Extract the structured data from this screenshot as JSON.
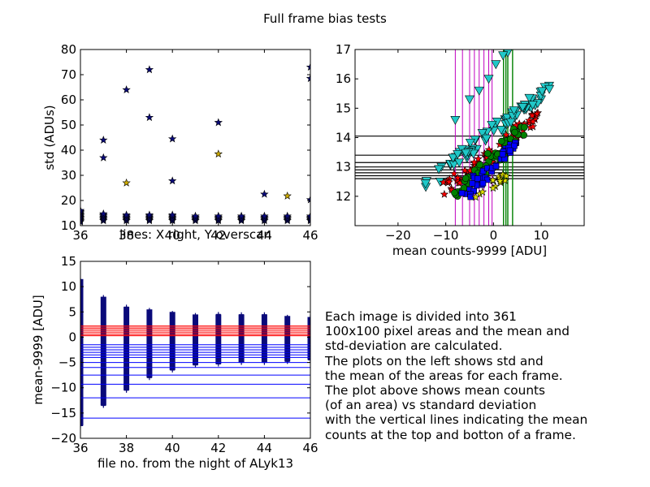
{
  "figure": {
    "title": "Full frame bias tests",
    "description": "Each image is divided into 361\n100x100 pixel areas and the mean and\nstd-deviation are calculated.\nThe plots on the left shows std and\nthe mean of the areas for each frame.\nThe plot above shows mean counts\n(of an area) vs standard deviation\nwith the vertical lines indicating the mean\ncounts at the top and botton of a frame."
  },
  "colors": {
    "navy": "#0a0a7a",
    "star_gold": "#c9a800",
    "red": "#ff0000",
    "blue": "#0000ff",
    "cyan": "#20c8c8",
    "green": "#008000",
    "magenta": "#c000c0",
    "black": "#000000",
    "yellow": "#e0e000"
  },
  "chart_data": [
    {
      "id": "std_vs_file",
      "type": "scatter",
      "title": "",
      "xlabel": "lines: X right, Y overscan",
      "ylabel": "std (ADUs)",
      "xlim": [
        36,
        46
      ],
      "ylim": [
        10,
        80
      ],
      "xticks": [
        36,
        38,
        40,
        42,
        44,
        46
      ],
      "yticks": [
        10,
        20,
        30,
        40,
        50,
        60,
        70,
        80
      ],
      "marker": "star",
      "outliers": {
        "x": [
          37,
          37,
          38,
          39,
          39,
          40,
          40,
          42,
          42,
          44,
          45,
          46,
          46,
          46
        ],
        "y": [
          44,
          37,
          64,
          72,
          53,
          44.5,
          27.8,
          51,
          38.5,
          22.5,
          21.8,
          73,
          68.5,
          20.3
        ]
      },
      "outlier_y_38b": 27,
      "clusters": {
        "x": [
          36,
          37,
          38,
          39,
          40,
          41,
          42,
          43,
          44,
          45,
          46
        ],
        "y_low": [
          11.5,
          12,
          12,
          12,
          12,
          12,
          12,
          12,
          12,
          12,
          12
        ],
        "y_high": [
          16,
          15,
          14.5,
          14.5,
          14.5,
          14,
          14,
          14,
          14,
          14,
          14
        ]
      }
    },
    {
      "id": "mean_vs_file",
      "type": "scatter",
      "title": "",
      "xlabel": "file no. from the night of ALyk13",
      "ylabel": "mean-9999 [ADU]",
      "xlim": [
        36,
        46
      ],
      "ylim": [
        -20,
        15
      ],
      "xticks": [
        36,
        38,
        40,
        42,
        44,
        46
      ],
      "yticks": [
        -20,
        -15,
        -10,
        -5,
        0,
        5,
        10,
        15
      ],
      "marker": "plus",
      "columns": {
        "x": [
          36,
          37,
          38,
          39,
          40,
          41,
          42,
          43,
          44,
          45,
          46
        ],
        "y_min": [
          -17.5,
          -13.5,
          -10.5,
          -8,
          -6.5,
          -5.5,
          -5.3,
          -5,
          -5,
          -4.8,
          -4.5
        ],
        "y_max": [
          11.5,
          8,
          6,
          5.5,
          5,
          4.5,
          4.5,
          4.5,
          4.5,
          4.2,
          4
        ]
      },
      "red_hlines": [
        2.2,
        1.8,
        1.4,
        1.0,
        0.6,
        0.3
      ],
      "blue_hlines": [
        -1.5,
        -2.0,
        -2.5,
        -3.0,
        -3.5,
        -4.0,
        -5.0,
        -6.0,
        -7.5,
        -9.3,
        -12.0,
        -16.0
      ]
    },
    {
      "id": "std_vs_mean",
      "type": "scatter",
      "title": "",
      "xlabel": "mean counts-9999 [ADU]",
      "ylabel": "",
      "xlim": [
        -29,
        19
      ],
      "ylim": [
        11,
        17
      ],
      "xticks": [
        -20,
        -10,
        0,
        10
      ],
      "yticks": [
        12,
        13,
        14,
        15,
        16,
        17
      ],
      "black_hlines": [
        14.05,
        13.4,
        13.15,
        13.0,
        12.9,
        12.8,
        12.7,
        12.6
      ],
      "magenta_vlines": [
        -8,
        -6.5,
        -5,
        -4,
        -3,
        -2,
        -1,
        -0.3
      ],
      "green_vlines": [
        2.1,
        2.6,
        3.0,
        4.0
      ],
      "series": [
        {
          "marker": "triangle-down",
          "color": "cyan",
          "x": [
            -14,
            11.5
          ],
          "y": [
            12.4,
            15.7
          ],
          "spread": 0.45,
          "n": 80,
          "extra_x": [
            -8,
            -5,
            -3,
            -1,
            0.5,
            3,
            2
          ],
          "extra_y": [
            14.6,
            15.3,
            15.6,
            16.0,
            16.5,
            16.9,
            16.8
          ]
        },
        {
          "marker": "star",
          "color": "red",
          "x": [
            -10,
            9
          ],
          "y": [
            12.2,
            14.7
          ],
          "spread": 0.55,
          "n": 70
        },
        {
          "marker": "circle",
          "color": "green",
          "x": [
            -8,
            6
          ],
          "y": [
            12.1,
            14.2
          ],
          "spread": 0.55,
          "n": 60
        },
        {
          "marker": "square",
          "color": "blue",
          "x": [
            -6,
            5
          ],
          "y": [
            12.1,
            13.8
          ],
          "spread": 0.45,
          "n": 40
        },
        {
          "marker": "star",
          "color": "yellow",
          "x": [
            -3,
            4
          ],
          "y": [
            12.1,
            12.9
          ],
          "spread": 0.3,
          "n": 15
        }
      ]
    }
  ]
}
